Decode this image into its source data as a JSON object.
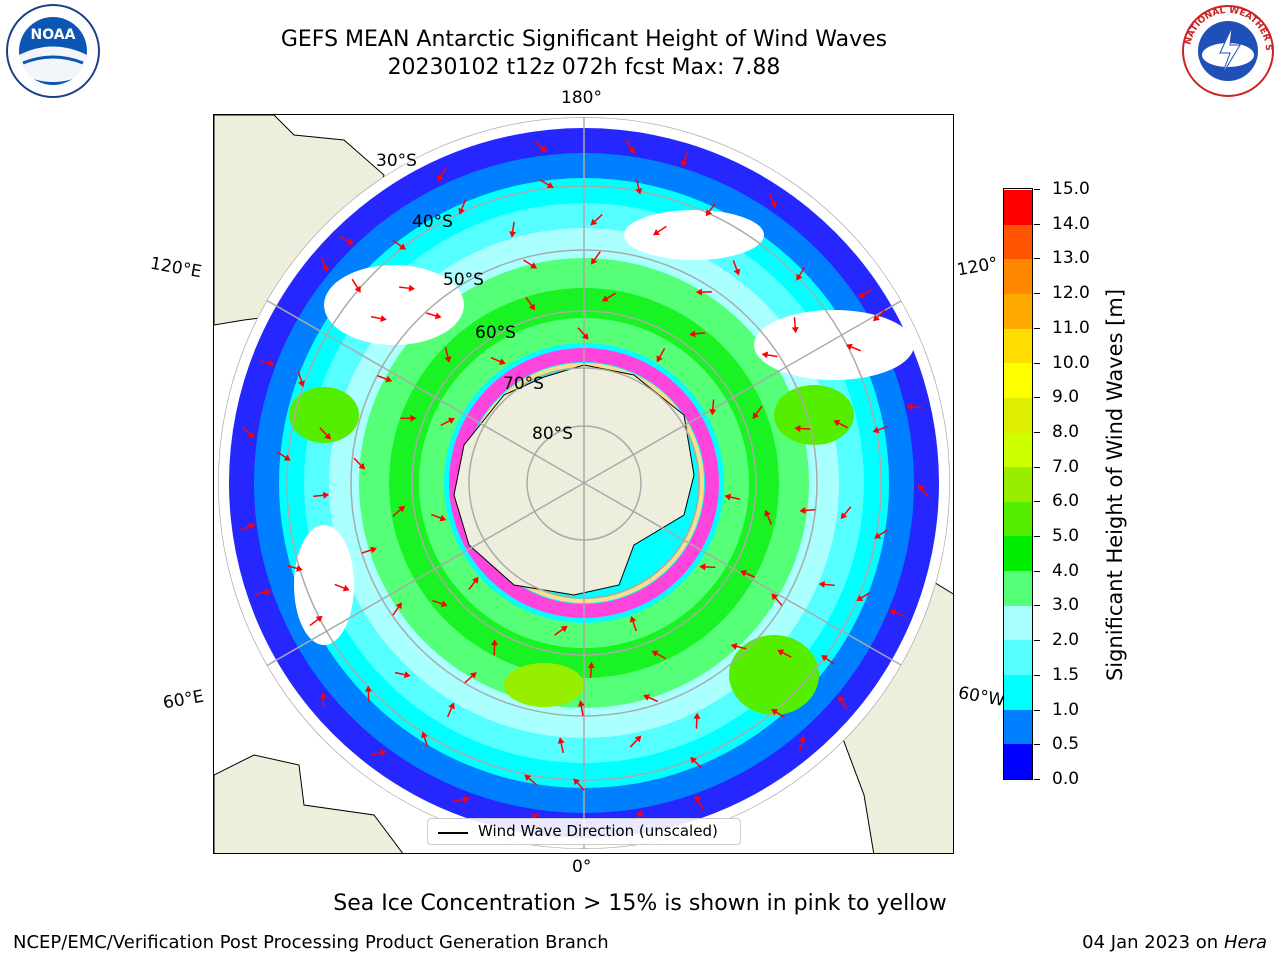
{
  "title_line1": "GEFS MEAN Antarctic Significant Height of Wind Waves",
  "title_line2": "20230102 t12z 072h fcst   Max: 7.88",
  "lat_labels": [
    "30°S",
    "40°S",
    "50°S",
    "60°S",
    "70°S",
    "80°S"
  ],
  "lon_labels": {
    "top": "180°",
    "bottom": "0°",
    "upper_left": "120°E",
    "upper_right": "120°",
    "lower_left": "60°E",
    "lower_right": "60°W"
  },
  "legend_text": "Wind Wave Direction (unscaled)",
  "colorbar": {
    "label": "Significant Height of Wind Waves [m]",
    "ticks": [
      "15.0",
      "14.0",
      "13.0",
      "12.0",
      "11.0",
      "10.0",
      "9.0",
      "8.0",
      "7.0",
      "6.0",
      "5.0",
      "4.0",
      "3.0",
      "2.0",
      "1.5",
      "1.0",
      "0.5",
      "0.0"
    ],
    "colors": [
      "#0000ff",
      "#0080ff",
      "#00ffff",
      "#55ffff",
      "#aaffff",
      "#55ff77",
      "#00ee00",
      "#55ee00",
      "#99ee00",
      "#ccff00",
      "#ddee00",
      "#ffff00",
      "#ffdd00",
      "#ffaa00",
      "#ff8800",
      "#ff5500",
      "#ff0000"
    ]
  },
  "subtitle": "Sea Ice Concentration > 15% is shown in pink to yellow",
  "footer_left": "NCEP/EMC/Verification Post Processing Product Generation Branch",
  "footer_right_date": "04 Jan 2023 on ",
  "footer_right_host": "Hera",
  "logos": {
    "left": "NOAA",
    "right": "NATIONAL WEATHER SERVICE"
  }
}
